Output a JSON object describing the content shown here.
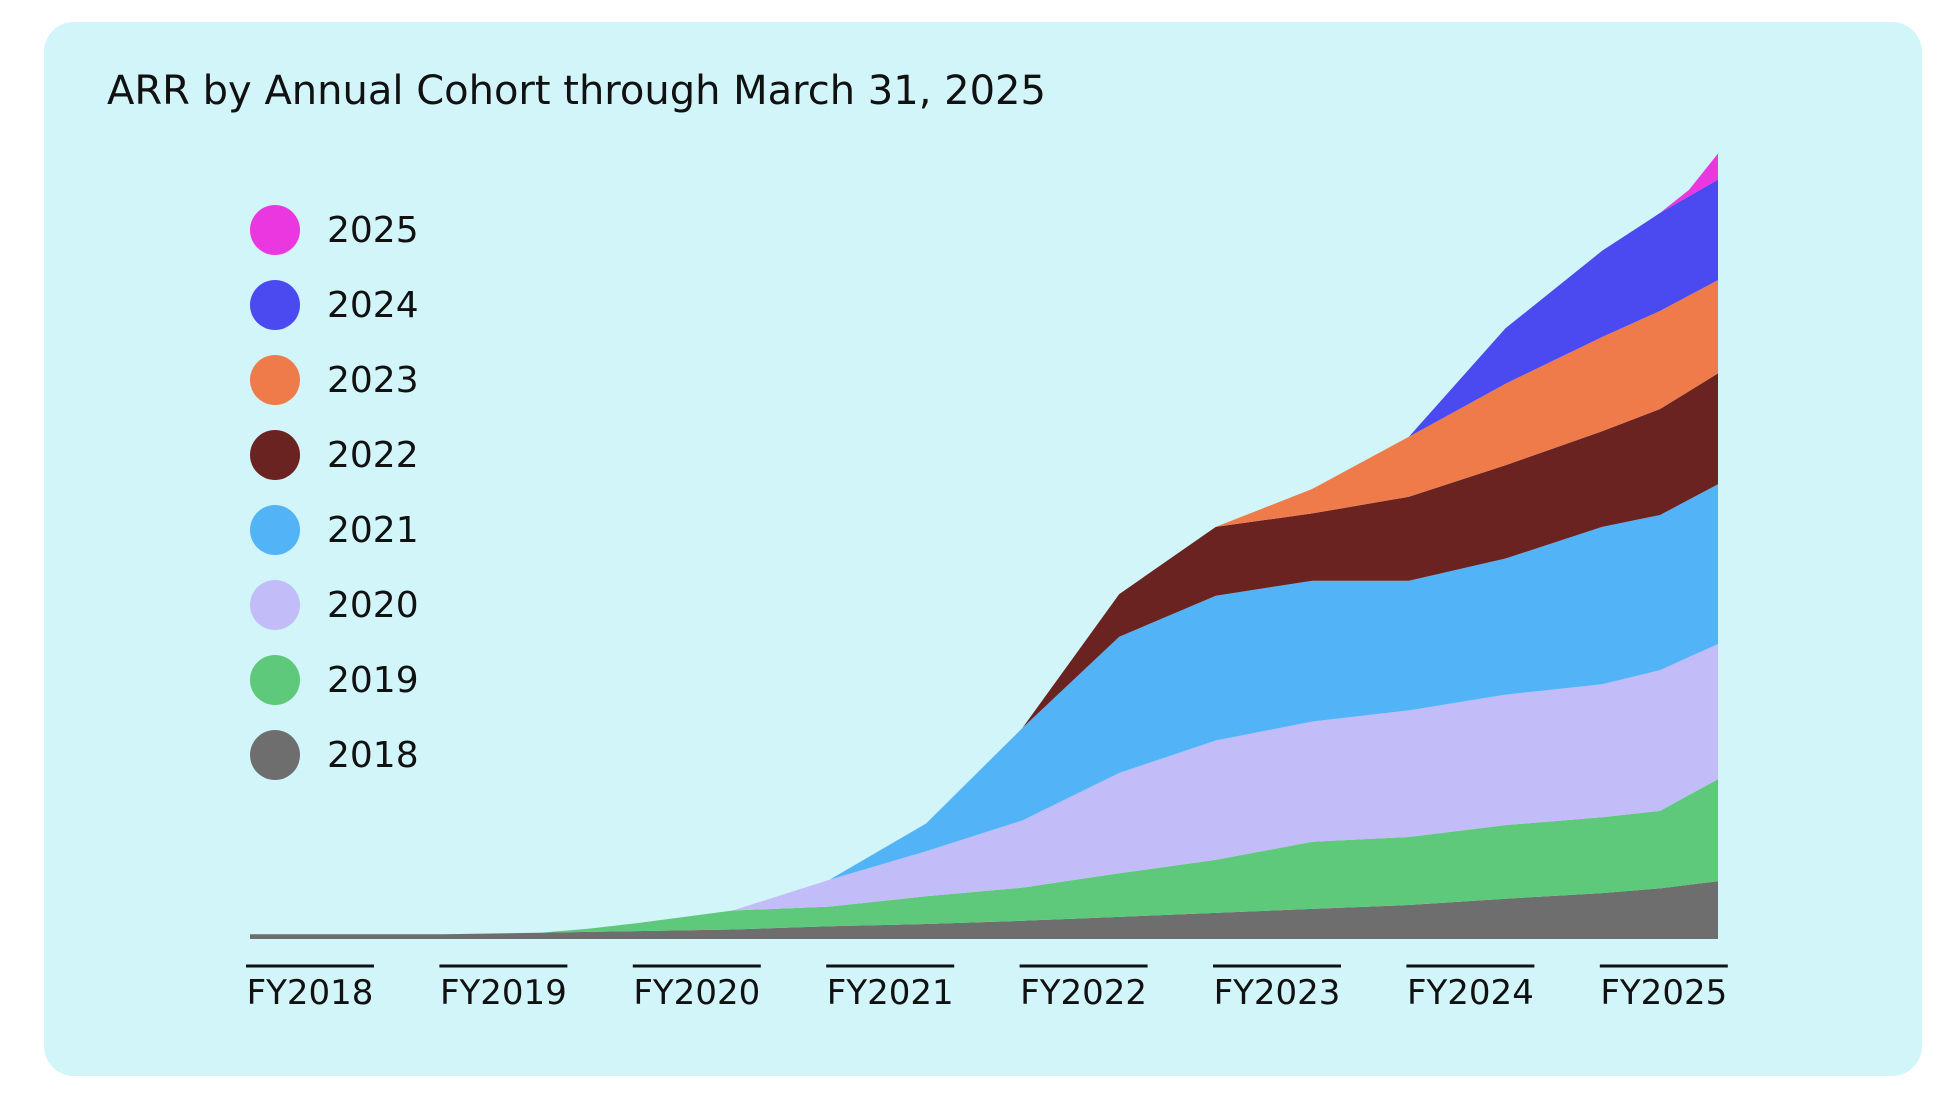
{
  "chart_data": {
    "type": "area",
    "stacked": true,
    "title": "ARR by Annual Cohort through March 31, 2025",
    "xlabel": "",
    "ylabel": "",
    "x_ticks": [
      "FY2018",
      "FY2019",
      "FY2020",
      "FY2021",
      "FY2022",
      "FY2023",
      "FY2024",
      "FY2025"
    ],
    "x_range": [
      0,
      7.6
    ],
    "y_range": [
      0,
      100
    ],
    "grid": false,
    "legend_position": "top-left",
    "series": [
      {
        "name": "2018",
        "color": "#6e6e6e",
        "points": [
          [
            0,
            0.6
          ],
          [
            0.5,
            0.6
          ],
          [
            1,
            0.6
          ],
          [
            1.5,
            0.8
          ],
          [
            2,
            1.0
          ],
          [
            2.5,
            1.2
          ],
          [
            3,
            1.6
          ],
          [
            3.5,
            1.9
          ],
          [
            4,
            2.3
          ],
          [
            4.5,
            2.8
          ],
          [
            5,
            3.3
          ],
          [
            5.5,
            3.8
          ],
          [
            6,
            4.3
          ],
          [
            6.5,
            5.1
          ],
          [
            7,
            5.8
          ],
          [
            7.3,
            6.4
          ],
          [
            7.6,
            7.3
          ]
        ]
      },
      {
        "name": "2019",
        "color": "#5ec97a",
        "points": [
          [
            1.5,
            0
          ],
          [
            1.75,
            0.4
          ],
          [
            2,
            1.0
          ],
          [
            2.5,
            2.4
          ],
          [
            3,
            2.5
          ],
          [
            3.5,
            3.5
          ],
          [
            4,
            4.2
          ],
          [
            4.5,
            5.5
          ],
          [
            5,
            6.7
          ],
          [
            5.5,
            8.5
          ],
          [
            6,
            8.6
          ],
          [
            6.5,
            9.3
          ],
          [
            7,
            9.6
          ],
          [
            7.3,
            9.8
          ],
          [
            7.6,
            12.9
          ]
        ]
      },
      {
        "name": "2020",
        "color": "#c2bdf8",
        "points": [
          [
            2.5,
            0
          ],
          [
            3,
            3.4
          ],
          [
            3.5,
            5.7
          ],
          [
            4,
            8.5
          ],
          [
            4.5,
            12.7
          ],
          [
            5,
            15.1
          ],
          [
            5.5,
            15.2
          ],
          [
            6,
            16.0
          ],
          [
            6.5,
            16.5
          ],
          [
            7,
            16.8
          ],
          [
            7.3,
            17.8
          ],
          [
            7.6,
            17.1
          ]
        ]
      },
      {
        "name": "2021",
        "color": "#52b4f7",
        "points": [
          [
            3,
            0
          ],
          [
            3.5,
            3.5
          ],
          [
            4,
            11.7
          ],
          [
            4.5,
            17.2
          ],
          [
            5,
            18.3
          ],
          [
            5.5,
            17.8
          ],
          [
            6,
            16.4
          ],
          [
            6.5,
            17.2
          ],
          [
            7,
            19.9
          ],
          [
            7.3,
            19.6
          ],
          [
            7.6,
            20.2
          ]
        ]
      },
      {
        "name": "2022",
        "color": "#6a2321",
        "points": [
          [
            4,
            0
          ],
          [
            4.5,
            5.4
          ],
          [
            5,
            8.7
          ],
          [
            5.5,
            8.5
          ],
          [
            6,
            10.6
          ],
          [
            6.5,
            11.8
          ],
          [
            7,
            12.1
          ],
          [
            7.3,
            13.4
          ],
          [
            7.6,
            14.0
          ]
        ]
      },
      {
        "name": "2023",
        "color": "#ef7b4a",
        "points": [
          [
            5,
            0
          ],
          [
            5.5,
            3.1
          ],
          [
            6,
            7.6
          ],
          [
            6.5,
            10.3
          ],
          [
            7,
            11.9
          ],
          [
            7.3,
            12.4
          ],
          [
            7.6,
            11.8
          ]
        ]
      },
      {
        "name": "2024",
        "color": "#4a4af0",
        "points": [
          [
            6,
            0
          ],
          [
            6.5,
            7.0
          ],
          [
            7,
            10.9
          ],
          [
            7.3,
            12.4
          ],
          [
            7.6,
            12.7
          ]
        ]
      },
      {
        "name": "2025",
        "color": "#ea37df",
        "points": [
          [
            7.3,
            0
          ],
          [
            7.45,
            0.8
          ],
          [
            7.6,
            3.3
          ]
        ]
      }
    ]
  }
}
